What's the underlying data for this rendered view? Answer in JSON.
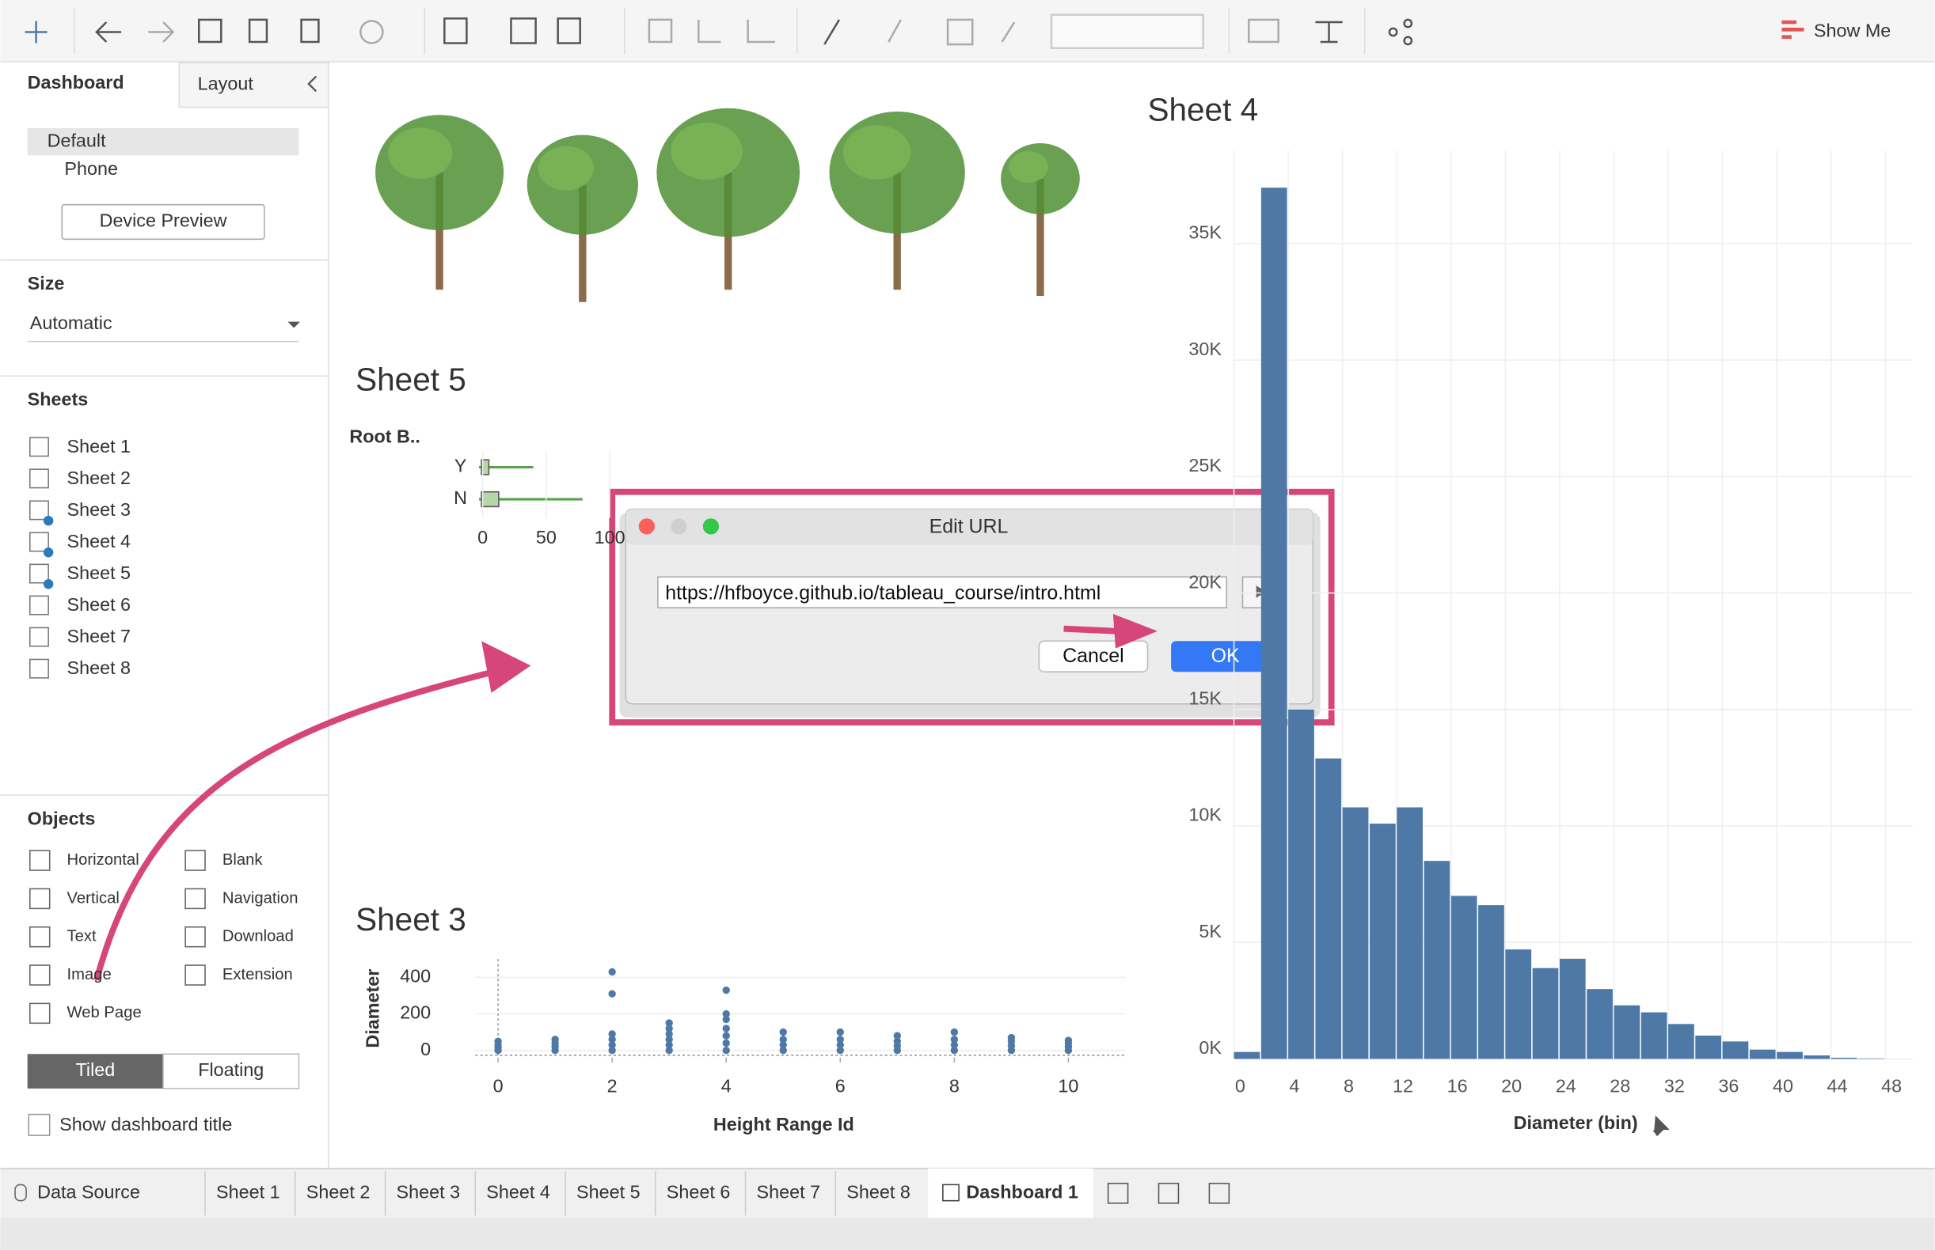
{
  "toolbar": {
    "show_me": "Show Me"
  },
  "side_panel": {
    "tabs": [
      "Dashboard",
      "Layout"
    ],
    "devices": [
      "Default",
      "Phone"
    ],
    "device_preview": "Device Preview",
    "size_heading": "Size",
    "size_value": "Automatic",
    "sheets_heading": "Sheets",
    "sheets": [
      "Sheet 1",
      "Sheet 2",
      "Sheet 3",
      "Sheet 4",
      "Sheet 5",
      "Sheet 6",
      "Sheet 7",
      "Sheet 8"
    ],
    "objects_heading": "Objects",
    "objects": [
      "Horizontal",
      "Blank",
      "Vertical",
      "Navigation",
      "Text",
      "Download",
      "Image",
      "Extension",
      "Web Page"
    ],
    "layout_modes": [
      "Tiled",
      "Floating"
    ],
    "show_title": "Show dashboard title"
  },
  "sheet5": {
    "title": "Sheet 5",
    "field": "Root B..",
    "categories": [
      "Y",
      "N"
    ],
    "xticks": [
      0,
      50,
      100
    ]
  },
  "chart_data": [
    {
      "type": "scatter",
      "title": "Sheet 3",
      "x_label": "Height Range Id",
      "y_label": "Diameter",
      "color": "#4e79a7",
      "x": [
        0,
        0,
        0,
        0,
        1,
        1,
        1,
        1,
        2,
        2,
        2,
        2,
        2,
        2,
        3,
        3,
        3,
        3,
        3,
        3,
        4,
        4,
        4,
        4,
        4,
        4,
        4,
        5,
        5,
        5,
        5,
        6,
        6,
        6,
        6,
        7,
        7,
        7,
        7,
        8,
        8,
        8,
        8,
        9,
        9,
        9,
        9,
        10,
        10,
        10,
        10
      ],
      "y": [
        0,
        15,
        30,
        50,
        0,
        20,
        40,
        60,
        0,
        30,
        60,
        90,
        310,
        430,
        0,
        30,
        60,
        90,
        120,
        150,
        0,
        40,
        80,
        120,
        170,
        200,
        330,
        0,
        30,
        60,
        100,
        0,
        30,
        60,
        100,
        0,
        25,
        50,
        80,
        0,
        30,
        60,
        100,
        0,
        25,
        50,
        70,
        0,
        20,
        40,
        55
      ],
      "xlim": [
        -0.4,
        11
      ],
      "ylim": [
        -40,
        500
      ],
      "xticks": [
        0,
        2,
        4,
        6,
        8,
        10
      ],
      "yticks": [
        0,
        200,
        400
      ]
    },
    {
      "type": "histogram",
      "title": "Sheet 4",
      "x_label": "Diameter (bin)",
      "color": "#4e79a7",
      "bins": [
        0,
        2,
        4,
        6,
        8,
        10,
        12,
        14,
        16,
        18,
        20,
        22,
        24,
        26,
        28,
        30,
        32,
        34,
        36,
        38,
        40,
        42,
        44,
        46,
        48
      ],
      "values": [
        300,
        37400,
        15000,
        12900,
        10800,
        10100,
        10800,
        8500,
        7000,
        6600,
        4700,
        3900,
        4300,
        3000,
        2300,
        2000,
        1500,
        1000,
        750,
        400,
        300,
        150,
        50,
        20
      ],
      "xlim": [
        0,
        50
      ],
      "ylim": [
        0,
        39000
      ],
      "xticks": [
        0,
        4,
        8,
        12,
        16,
        20,
        24,
        28,
        32,
        36,
        40,
        44,
        48
      ],
      "yticks": [
        {
          "value": 0,
          "label": "0K"
        },
        {
          "value": 5000,
          "label": "5K"
        },
        {
          "value": 10000,
          "label": "10K"
        },
        {
          "value": 15000,
          "label": "15K"
        },
        {
          "value": 20000,
          "label": "20K"
        },
        {
          "value": 25000,
          "label": "25K"
        },
        {
          "value": 30000,
          "label": "30K"
        },
        {
          "value": 35000,
          "label": "35K"
        }
      ],
      "grid": true
    }
  ],
  "dialog": {
    "title": "Edit URL",
    "url": "https://hfboyce.github.io/tableau_course/intro.html",
    "cancel": "Cancel",
    "ok": "OK"
  },
  "bottom_tabs": {
    "data_source": "Data Source",
    "sheets": [
      "Sheet 1",
      "Sheet 2",
      "Sheet 3",
      "Sheet 4",
      "Sheet 5",
      "Sheet 6",
      "Sheet 7",
      "Sheet 8"
    ],
    "dashboard": "Dashboard 1"
  }
}
